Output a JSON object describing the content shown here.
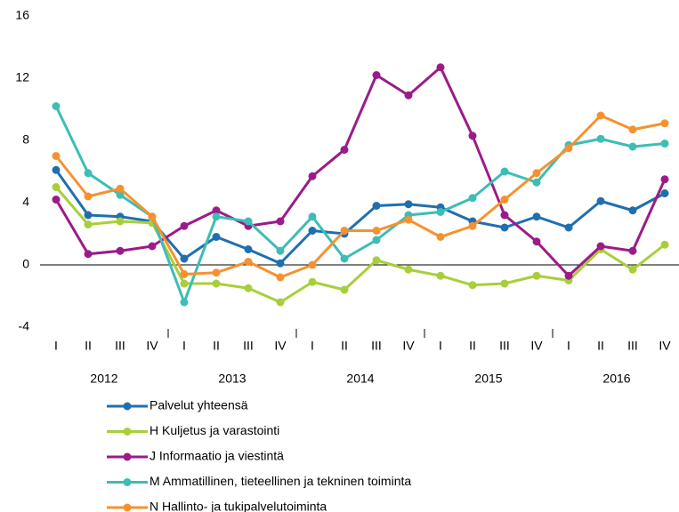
{
  "chart_data": {
    "type": "line",
    "categories": [
      "I",
      "II",
      "III",
      "IV",
      "I",
      "II",
      "III",
      "IV",
      "I",
      "II",
      "III",
      "IV",
      "I",
      "II",
      "III",
      "IV",
      "I",
      "II",
      "III",
      "IV"
    ],
    "year_labels": [
      "2012",
      "2013",
      "2014",
      "2015",
      "2016"
    ],
    "ylim": [
      -4,
      16
    ],
    "yticks": [
      -4,
      0,
      4,
      8,
      12,
      16
    ],
    "grid": false,
    "series": [
      {
        "name": "Palvelut yhteensä",
        "color": "#1f6fb0",
        "values": [
          6.1,
          3.2,
          3.1,
          2.8,
          0.4,
          1.8,
          1.0,
          0.1,
          2.2,
          2.0,
          3.8,
          3.9,
          3.7,
          2.8,
          2.4,
          3.1,
          2.4,
          4.1,
          3.5,
          4.6
        ]
      },
      {
        "name": "H Kuljetus ja varastointi",
        "color": "#a8cf3a",
        "values": [
          5.0,
          2.6,
          2.8,
          2.7,
          -1.2,
          -1.2,
          -1.5,
          -2.4,
          -1.1,
          -1.6,
          0.3,
          -0.3,
          -0.7,
          -1.3,
          -1.2,
          -0.7,
          -1.0,
          1.0,
          -0.3,
          1.3
        ]
      },
      {
        "name": "J Informaatio ja viestintä",
        "color": "#9b1b8a",
        "values": [
          4.2,
          0.7,
          0.9,
          1.2,
          2.5,
          3.5,
          2.5,
          2.8,
          5.7,
          7.4,
          12.2,
          10.9,
          12.7,
          8.3,
          3.2,
          1.5,
          -0.7,
          1.2,
          0.9,
          5.5
        ]
      },
      {
        "name": "M Ammatillinen, tieteellinen ja tekninen toiminta",
        "color": "#3cbdb5",
        "values": [
          10.2,
          5.9,
          4.5,
          3.1,
          -2.4,
          3.1,
          2.8,
          0.9,
          3.1,
          0.4,
          1.6,
          3.2,
          3.4,
          4.3,
          6.0,
          5.3,
          7.7,
          8.1,
          7.6,
          7.8
        ]
      },
      {
        "name": "N Hallinto- ja tukipalvelutoiminta",
        "color": "#f5922f",
        "values": [
          7.0,
          4.4,
          4.9,
          3.1,
          -0.6,
          -0.5,
          0.2,
          -0.8,
          0.0,
          2.2,
          2.2,
          2.9,
          1.8,
          2.5,
          4.2,
          5.9,
          7.5,
          9.6,
          8.7,
          9.1
        ]
      }
    ]
  }
}
